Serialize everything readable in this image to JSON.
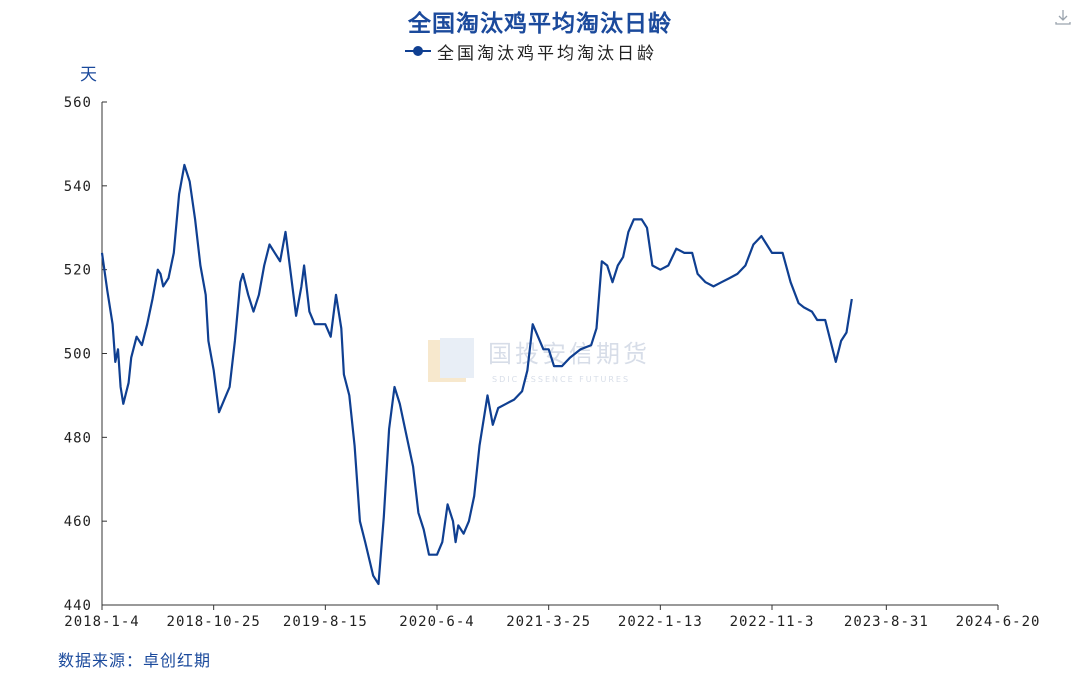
{
  "title": "全国淘汰鸡平均淘汰日龄",
  "source": "数据来源：卓创红期",
  "watermark": {
    "cn": "国投安信期货",
    "en": "SDIC ESSENCE FUTURES"
  },
  "icons": {
    "download": "download-icon"
  },
  "colors": {
    "line": "#0f3f91",
    "title": "#1b4a9c",
    "axis": "#333333"
  },
  "chart_data": {
    "type": "line",
    "title": "全国淘汰鸡平均淘汰日龄",
    "ylabel": "天",
    "xlabel": "",
    "ylim": [
      440,
      560
    ],
    "yticks": [
      440,
      460,
      480,
      500,
      520,
      540,
      560
    ],
    "xlim": [
      "2018-01-04",
      "2024-06-20"
    ],
    "xtick_labels": [
      "2018-1-4",
      "2018-10-25",
      "2019-8-15",
      "2020-6-4",
      "2021-3-25",
      "2022-1-13",
      "2022-11-3",
      "2023-8-31",
      "2024-6-20"
    ],
    "xtick_dates": [
      "2018-01-04",
      "2018-10-25",
      "2019-08-15",
      "2020-06-04",
      "2021-03-25",
      "2022-01-13",
      "2022-11-03",
      "2023-08-31",
      "2024-06-20"
    ],
    "grid": false,
    "legend": "top-center",
    "series": [
      {
        "name": "全国淘汰鸡平均淘汰日龄",
        "points": [
          [
            "2018-01-04",
            524
          ],
          [
            "2018-01-18",
            515
          ],
          [
            "2018-02-01",
            507
          ],
          [
            "2018-02-08",
            498
          ],
          [
            "2018-02-15",
            501
          ],
          [
            "2018-02-22",
            492
          ],
          [
            "2018-03-01",
            488
          ],
          [
            "2018-03-15",
            493
          ],
          [
            "2018-03-22",
            499
          ],
          [
            "2018-04-05",
            504
          ],
          [
            "2018-04-19",
            502
          ],
          [
            "2018-05-03",
            507
          ],
          [
            "2018-05-17",
            513
          ],
          [
            "2018-05-31",
            520
          ],
          [
            "2018-06-07",
            519
          ],
          [
            "2018-06-14",
            516
          ],
          [
            "2018-06-28",
            518
          ],
          [
            "2018-07-12",
            524
          ],
          [
            "2018-07-26",
            538
          ],
          [
            "2018-08-09",
            545
          ],
          [
            "2018-08-23",
            541
          ],
          [
            "2018-09-06",
            532
          ],
          [
            "2018-09-20",
            521
          ],
          [
            "2018-10-04",
            514
          ],
          [
            "2018-10-11",
            503
          ],
          [
            "2018-10-25",
            496
          ],
          [
            "2018-11-08",
            486
          ],
          [
            "2018-11-22",
            489
          ],
          [
            "2018-12-06",
            492
          ],
          [
            "2018-12-20",
            503
          ],
          [
            "2019-01-03",
            517
          ],
          [
            "2019-01-10",
            519
          ],
          [
            "2019-01-24",
            514
          ],
          [
            "2019-02-07",
            510
          ],
          [
            "2019-02-21",
            514
          ],
          [
            "2019-03-07",
            521
          ],
          [
            "2019-03-21",
            526
          ],
          [
            "2019-04-04",
            524
          ],
          [
            "2019-04-18",
            522
          ],
          [
            "2019-05-02",
            529
          ],
          [
            "2019-05-16",
            519
          ],
          [
            "2019-05-30",
            509
          ],
          [
            "2019-06-13",
            516
          ],
          [
            "2019-06-20",
            521
          ],
          [
            "2019-07-04",
            510
          ],
          [
            "2019-07-18",
            507
          ],
          [
            "2019-08-01",
            507
          ],
          [
            "2019-08-15",
            507
          ],
          [
            "2019-08-29",
            504
          ],
          [
            "2019-09-12",
            514
          ],
          [
            "2019-09-26",
            506
          ],
          [
            "2019-10-03",
            495
          ],
          [
            "2019-10-17",
            490
          ],
          [
            "2019-10-31",
            478
          ],
          [
            "2019-11-14",
            460
          ],
          [
            "2019-11-28",
            455
          ],
          [
            "2019-12-19",
            447
          ],
          [
            "2020-01-02",
            445
          ],
          [
            "2020-01-16",
            461
          ],
          [
            "2020-01-30",
            482
          ],
          [
            "2020-02-13",
            492
          ],
          [
            "2020-02-27",
            488
          ],
          [
            "2020-03-12",
            482
          ],
          [
            "2020-04-02",
            473
          ],
          [
            "2020-04-16",
            462
          ],
          [
            "2020-04-30",
            458
          ],
          [
            "2020-05-14",
            452
          ],
          [
            "2020-06-04",
            452
          ],
          [
            "2020-06-18",
            455
          ],
          [
            "2020-07-02",
            464
          ],
          [
            "2020-07-16",
            460
          ],
          [
            "2020-07-23",
            455
          ],
          [
            "2020-07-30",
            459
          ],
          [
            "2020-08-13",
            457
          ],
          [
            "2020-08-27",
            460
          ],
          [
            "2020-09-10",
            466
          ],
          [
            "2020-09-24",
            478
          ],
          [
            "2020-10-15",
            490
          ],
          [
            "2020-10-29",
            483
          ],
          [
            "2020-11-12",
            487
          ],
          [
            "2020-12-03",
            488
          ],
          [
            "2020-12-24",
            489
          ],
          [
            "2021-01-14",
            491
          ],
          [
            "2021-01-28",
            496
          ],
          [
            "2021-02-11",
            507
          ],
          [
            "2021-03-11",
            501
          ],
          [
            "2021-03-25",
            501
          ],
          [
            "2021-04-08",
            497
          ],
          [
            "2021-04-29",
            497
          ],
          [
            "2021-05-20",
            499
          ],
          [
            "2021-06-17",
            501
          ],
          [
            "2021-07-15",
            502
          ],
          [
            "2021-07-29",
            506
          ],
          [
            "2021-08-12",
            522
          ],
          [
            "2021-08-26",
            521
          ],
          [
            "2021-09-09",
            517
          ],
          [
            "2021-09-23",
            521
          ],
          [
            "2021-10-07",
            523
          ],
          [
            "2021-10-21",
            529
          ],
          [
            "2021-11-04",
            532
          ],
          [
            "2021-11-25",
            532
          ],
          [
            "2021-12-09",
            530
          ],
          [
            "2021-12-23",
            521
          ],
          [
            "2022-01-13",
            520
          ],
          [
            "2022-02-03",
            521
          ],
          [
            "2022-02-24",
            525
          ],
          [
            "2022-03-17",
            524
          ],
          [
            "2022-04-07",
            524
          ],
          [
            "2022-04-21",
            519
          ],
          [
            "2022-05-12",
            517
          ],
          [
            "2022-06-02",
            516
          ],
          [
            "2022-06-23",
            517
          ],
          [
            "2022-07-14",
            518
          ],
          [
            "2022-08-04",
            519
          ],
          [
            "2022-08-25",
            521
          ],
          [
            "2022-09-15",
            526
          ],
          [
            "2022-10-06",
            528
          ],
          [
            "2022-10-20",
            526
          ],
          [
            "2022-11-03",
            524
          ],
          [
            "2022-12-01",
            524
          ],
          [
            "2022-12-22",
            517
          ],
          [
            "2023-01-12",
            512
          ],
          [
            "2023-01-26",
            511
          ],
          [
            "2023-02-16",
            510
          ],
          [
            "2023-03-02",
            508
          ],
          [
            "2023-03-23",
            508
          ],
          [
            "2023-04-06",
            503
          ],
          [
            "2023-04-20",
            498
          ],
          [
            "2023-05-04",
            503
          ],
          [
            "2023-05-18",
            505
          ],
          [
            "2023-06-01",
            513
          ]
        ]
      }
    ]
  }
}
